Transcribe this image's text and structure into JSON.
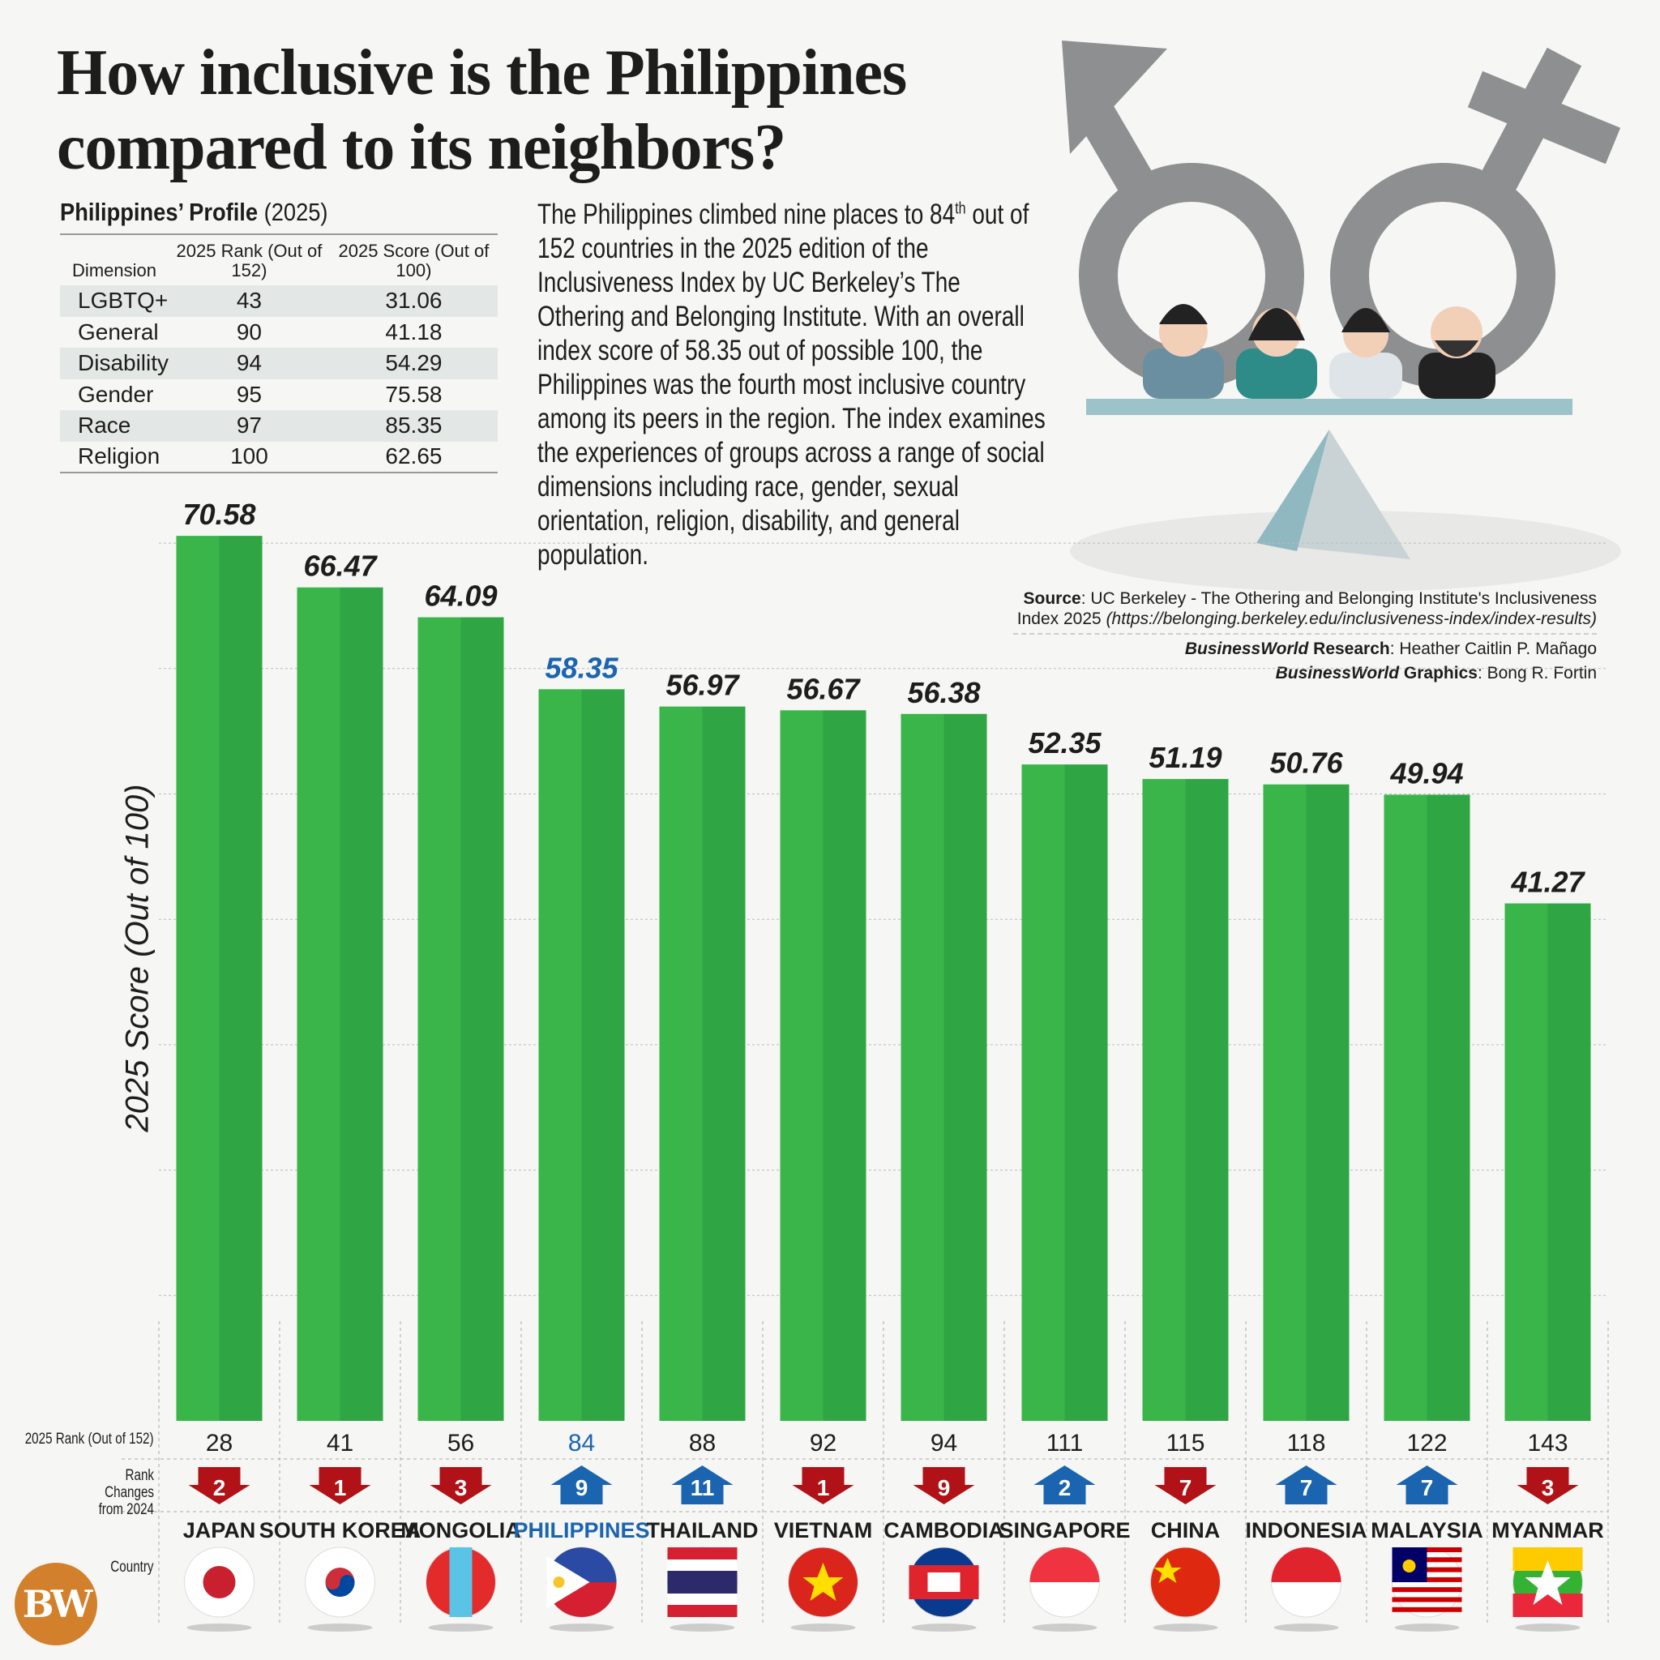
{
  "title": "How inclusive is the Philippines compared to its neighbors?",
  "profile": {
    "heading_bold": "Philippines’ Profile",
    "heading_year": "(2025)",
    "columns": [
      "Dimension",
      "2025 Rank (Out of 152)",
      "2025 Score (Out of 100)"
    ],
    "rows": [
      [
        "LGBTQ+",
        "43",
        "31.06"
      ],
      [
        "General",
        "90",
        "41.18"
      ],
      [
        "Disability",
        "94",
        "54.29"
      ],
      [
        "Gender",
        "95",
        "75.58"
      ],
      [
        "Race",
        "97",
        "85.35"
      ],
      [
        "Religion",
        "100",
        "62.65"
      ]
    ]
  },
  "paragraph_pre": "The Philippines climbed nine places to 84",
  "paragraph_sup": "th",
  "paragraph_post": " out of 152 countries in the 2025 edition of the Inclusiveness Index by UC Berkeley’s The Othering and Belonging Institute. With an overall index score of 58.35 out of possible 100, the Philippines was the fourth most inclusive country among its peers in the region. The index examines the experiences of groups across a range of social dimensions including race, gender, sexual orientation, religion, disability, and general population.",
  "source": {
    "label": "Source",
    "text": ": UC Berkeley - The Othering and Belonging Institute's Inclusiveness Index 2025 ",
    "url": "(https://belonging.berkeley.edu/inclusiveness-index/index-results)",
    "research_brand": "BusinessWorld",
    "research_label": " Research",
    "research_name": ": Heather Caitlin P. Mañago",
    "graphics_brand": "BusinessWorld",
    "graphics_label": " Graphics",
    "graphics_name": ": Bong R. Fortin"
  },
  "logo": "BW",
  "row_labels": {
    "rank": "2025 Rank (Out of 152)",
    "change": "Rank Changes from 2024",
    "country": "Country"
  },
  "colors": {
    "bar": "#3ab54a",
    "bar_dark": "#2fa544",
    "highlight": "#1b64b0",
    "down": "#b01217",
    "up": "#1b64b0"
  },
  "chart_data": {
    "type": "bar",
    "ylabel": "2025 Score (Out of 100)",
    "ylim": [
      0,
      70
    ],
    "grid": true,
    "categories": [
      "JAPAN",
      "SOUTH KOREA",
      "MONGOLIA",
      "PHILIPPINES",
      "THAILAND",
      "VIETNAM",
      "CAMBODIA",
      "SINGAPORE",
      "CHINA",
      "INDONESIA",
      "MALAYSIA",
      "MYANMAR"
    ],
    "values": [
      70.58,
      66.47,
      64.09,
      58.35,
      56.97,
      56.67,
      56.38,
      52.35,
      51.19,
      50.76,
      49.94,
      41.27
    ],
    "value_labels": [
      "70.58",
      "66.47",
      "64.09",
      "58.35",
      "56.97",
      "56.67",
      "56.38",
      "52.35",
      "51.19",
      "50.76",
      "49.94",
      "41.27"
    ],
    "rank_2025": [
      "28",
      "41",
      "56",
      "84",
      "88",
      "92",
      "94",
      "111",
      "115",
      "118",
      "122",
      "143"
    ],
    "rank_change": [
      -2,
      -1,
      -3,
      9,
      11,
      -1,
      -9,
      2,
      -7,
      7,
      7,
      -3
    ],
    "rank_change_labels": [
      "2",
      "1",
      "3",
      "9",
      "11",
      "1",
      "9",
      "2",
      "7",
      "7",
      "7",
      "3"
    ],
    "highlight": "PHILIPPINES"
  }
}
